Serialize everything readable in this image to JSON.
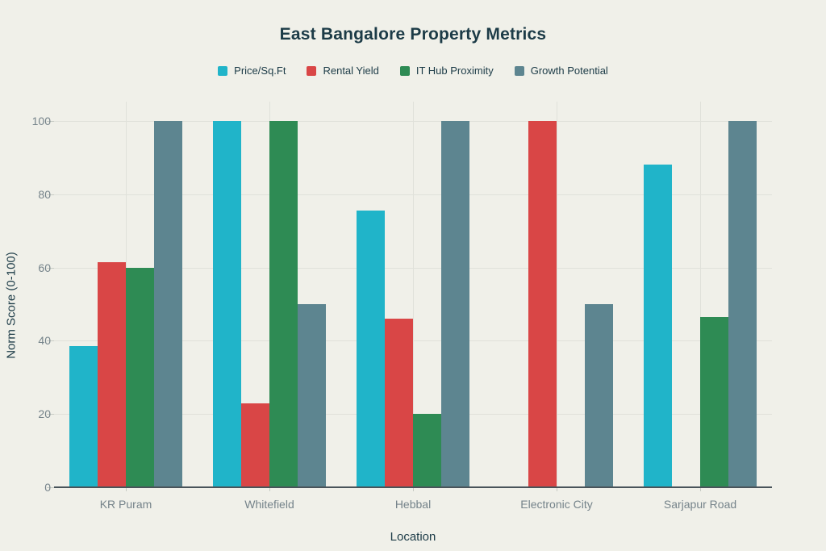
{
  "title": "East Bangalore Property Metrics",
  "axes": {
    "x_title": "Location",
    "y_title": "Norm Score (0-100)"
  },
  "colors": {
    "background": "#F0F0E9",
    "title_text": "#1C3B47",
    "tick_text": "#75838A",
    "gridline": "#E0E1DA",
    "axis_line": "#49545A"
  },
  "chart_data": {
    "type": "bar",
    "title": "East Bangalore Property Metrics",
    "xlabel": "Location",
    "ylabel": "Norm Score (0-100)",
    "categories": [
      "KR Puram",
      "Whitefield",
      "Hebbal",
      "Electronic City",
      "Sarjapur Road"
    ],
    "series": [
      {
        "name": "Price/Sq.Ft",
        "color": "#20B4C9",
        "values": [
          38.5,
          100,
          75.5,
          0,
          88
        ]
      },
      {
        "name": "Rental Yield",
        "color": "#D94646",
        "values": [
          61.5,
          23,
          46,
          100,
          0
        ]
      },
      {
        "name": "IT Hub Proximity",
        "color": "#2E8B54",
        "values": [
          60,
          100,
          20,
          0,
          46.5
        ]
      },
      {
        "name": "Growth Potential",
        "color": "#5D8590",
        "values": [
          100,
          50,
          100,
          50,
          100
        ]
      }
    ],
    "ylim": [
      0,
      100
    ],
    "yticks": [
      0,
      20,
      40,
      60,
      80,
      100
    ],
    "grid": true,
    "legend_position": "top-center"
  }
}
